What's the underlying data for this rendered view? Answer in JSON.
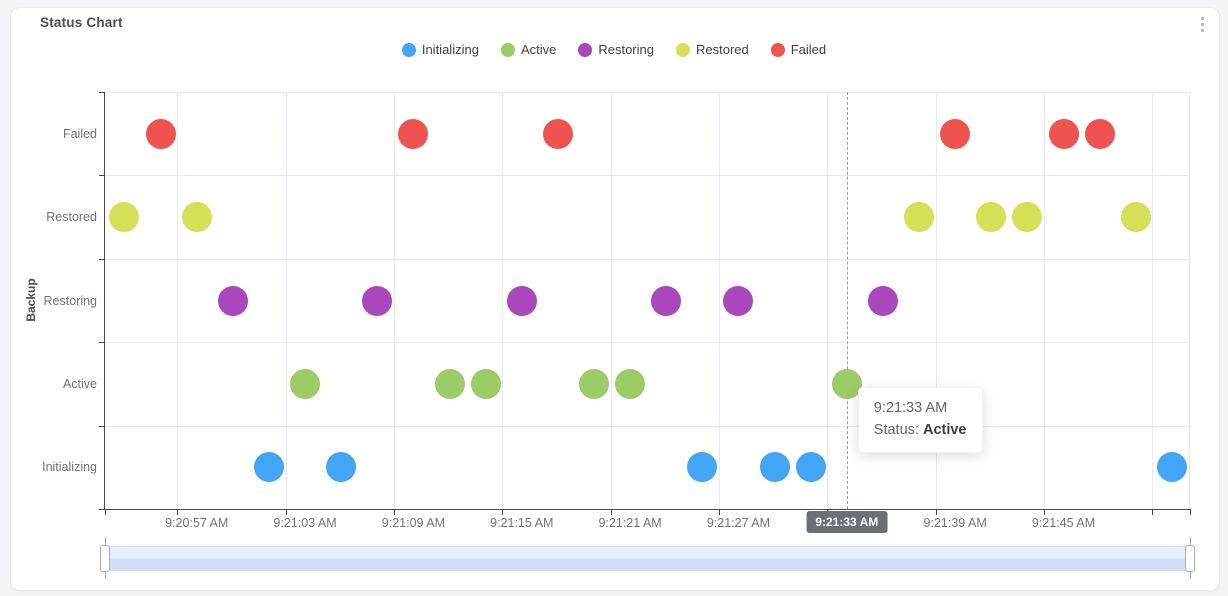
{
  "card": {
    "title": "Status Chart"
  },
  "legend": [
    {
      "label": "Initializing",
      "color": "#42A5F5"
    },
    {
      "label": "Active",
      "color": "#9CCC65"
    },
    {
      "label": "Restoring",
      "color": "#AB47BC"
    },
    {
      "label": "Restored",
      "color": "#D4E157"
    },
    {
      "label": "Failed",
      "color": "#EF5350"
    }
  ],
  "chart_data": {
    "type": "scatter",
    "title": "Status Chart",
    "ylabel": "Backup",
    "y_categories": [
      "Failed",
      "Restored",
      "Restoring",
      "Active",
      "Initializing"
    ],
    "x_axis_labels": [
      "9:20:57 AM",
      "9:21:03 AM",
      "9:21:09 AM",
      "9:21:15 AM",
      "9:21:21 AM",
      "9:21:27 AM",
      "9:21:33 AM",
      "9:21:39 AM",
      "9:21:45 AM"
    ],
    "series": [
      {
        "name": "Initializing",
        "color": "#42A5F5",
        "times": [
          "9:21:01 AM",
          "9:21:05 AM",
          "9:21:25 AM",
          "9:21:29 AM",
          "9:21:31 AM",
          "9:21:51 AM"
        ]
      },
      {
        "name": "Active",
        "color": "#9CCC65",
        "times": [
          "9:21:03 AM",
          "9:21:11 AM",
          "9:21:13 AM",
          "9:21:19 AM",
          "9:21:21 AM",
          "9:21:33 AM"
        ]
      },
      {
        "name": "Restoring",
        "color": "#AB47BC",
        "times": [
          "9:20:59 AM",
          "9:21:07 AM",
          "9:21:15 AM",
          "9:21:23 AM",
          "9:21:27 AM",
          "9:21:35 AM"
        ]
      },
      {
        "name": "Restored",
        "color": "#D4E157",
        "times": [
          "9:20:53 AM",
          "9:20:57 AM",
          "9:21:37 AM",
          "9:21:41 AM",
          "9:21:43 AM",
          "9:21:49 AM"
        ]
      },
      {
        "name": "Failed",
        "color": "#EF5350",
        "times": [
          "9:20:55 AM",
          "9:21:09 AM",
          "9:21:17 AM",
          "9:21:39 AM",
          "9:21:45 AM",
          "9:21:47 AM"
        ]
      }
    ],
    "highlight": {
      "time": "9:21:33 AM",
      "status": "Active"
    },
    "tooltip": {
      "time": "9:21:33 AM",
      "label": "Status:",
      "value": "Active"
    },
    "grid": true,
    "legend_position": "top"
  },
  "slider": {
    "track_top": "#e9eefc",
    "track_bottom": "#d2def7",
    "handle_border": "#a9aeba"
  }
}
